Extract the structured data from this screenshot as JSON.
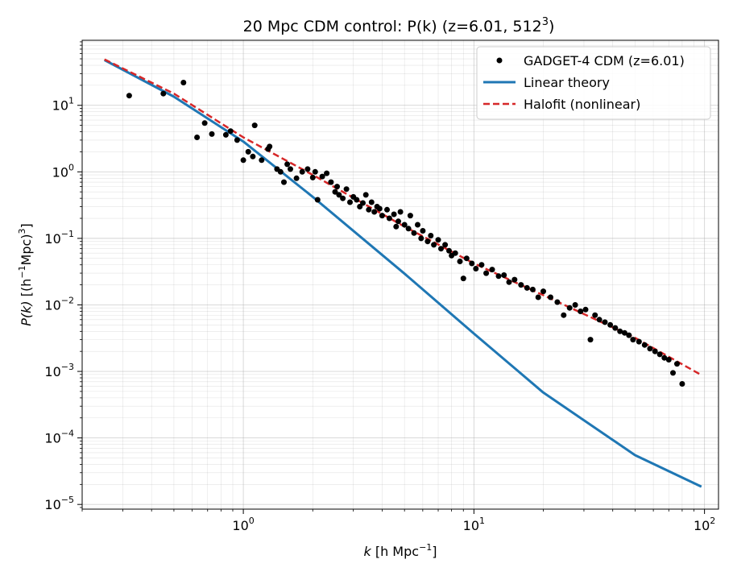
{
  "chart_data": {
    "type": "scatter",
    "title_main": "20 Mpc CDM control: P(k) (z=6.01, 512",
    "title_sup": "3",
    "title_end": ")",
    "xlabel": {
      "base": "k",
      "unit": "[h Mpc",
      "exp": "−1",
      "close": "]"
    },
    "ylabel": {
      "base": "P(k)",
      "unit": "[(h",
      "exp": "−1",
      "mid": "Mpc)",
      "exp2": "3",
      "close": "]"
    },
    "x_scale": "log",
    "y_scale": "log",
    "xlim": [
      0.2,
      115
    ],
    "ylim": [
      8.5e-06,
      95
    ],
    "x_ticks": [
      {
        "value": 1,
        "label_base": "10",
        "label_exp": "0"
      },
      {
        "value": 10,
        "label_base": "10",
        "label_exp": "1"
      },
      {
        "value": 100,
        "label_base": "10",
        "label_exp": "2"
      }
    ],
    "y_ticks": [
      {
        "value": 1e-05,
        "label_base": "10",
        "label_exp": "−5"
      },
      {
        "value": 0.0001,
        "label_base": "10",
        "label_exp": "−4"
      },
      {
        "value": 0.001,
        "label_base": "10",
        "label_exp": "−3"
      },
      {
        "value": 0.01,
        "label_base": "10",
        "label_exp": "−2"
      },
      {
        "value": 0.1,
        "label_base": "10",
        "label_exp": "−1"
      },
      {
        "value": 1,
        "label_base": "10",
        "label_exp": "0"
      },
      {
        "value": 10,
        "label_base": "10",
        "label_exp": "1"
      }
    ],
    "grid": true,
    "legend_position": "top-right",
    "series": [
      {
        "name": "GADGET-4 CDM (z=6.01)",
        "kind": "scatter",
        "color": "#000000",
        "points": [
          [
            0.32,
            14
          ],
          [
            0.45,
            15
          ],
          [
            0.55,
            22
          ],
          [
            0.63,
            3.3
          ],
          [
            0.68,
            5.4
          ],
          [
            0.73,
            3.7
          ],
          [
            0.84,
            3.6
          ],
          [
            0.88,
            4.1
          ],
          [
            0.94,
            3.0
          ],
          [
            1.0,
            1.5
          ],
          [
            1.05,
            2.0
          ],
          [
            1.1,
            1.7
          ],
          [
            1.12,
            5.0
          ],
          [
            1.2,
            1.5
          ],
          [
            1.28,
            2.2
          ],
          [
            1.3,
            2.4
          ],
          [
            1.4,
            1.1
          ],
          [
            1.45,
            1.0
          ],
          [
            1.5,
            0.7
          ],
          [
            1.55,
            1.3
          ],
          [
            1.6,
            1.1
          ],
          [
            1.7,
            0.8
          ],
          [
            1.8,
            1.0
          ],
          [
            1.9,
            1.1
          ],
          [
            2.0,
            0.82
          ],
          [
            2.05,
            1.0
          ],
          [
            2.1,
            0.38
          ],
          [
            2.2,
            0.85
          ],
          [
            2.3,
            0.95
          ],
          [
            2.4,
            0.7
          ],
          [
            2.5,
            0.5
          ],
          [
            2.55,
            0.6
          ],
          [
            2.6,
            0.45
          ],
          [
            2.7,
            0.4
          ],
          [
            2.8,
            0.55
          ],
          [
            2.9,
            0.35
          ],
          [
            3.0,
            0.42
          ],
          [
            3.1,
            0.38
          ],
          [
            3.2,
            0.3
          ],
          [
            3.3,
            0.34
          ],
          [
            3.4,
            0.45
          ],
          [
            3.5,
            0.27
          ],
          [
            3.6,
            0.35
          ],
          [
            3.7,
            0.25
          ],
          [
            3.8,
            0.3
          ],
          [
            3.9,
            0.28
          ],
          [
            4.0,
            0.22
          ],
          [
            4.2,
            0.27
          ],
          [
            4.3,
            0.2
          ],
          [
            4.5,
            0.23
          ],
          [
            4.6,
            0.15
          ],
          [
            4.7,
            0.18
          ],
          [
            4.8,
            0.25
          ],
          [
            5.0,
            0.16
          ],
          [
            5.2,
            0.14
          ],
          [
            5.3,
            0.22
          ],
          [
            5.5,
            0.12
          ],
          [
            5.7,
            0.16
          ],
          [
            5.9,
            0.1
          ],
          [
            6.0,
            0.13
          ],
          [
            6.3,
            0.09
          ],
          [
            6.5,
            0.11
          ],
          [
            6.7,
            0.08
          ],
          [
            7.0,
            0.095
          ],
          [
            7.2,
            0.07
          ],
          [
            7.5,
            0.08
          ],
          [
            7.8,
            0.065
          ],
          [
            8.0,
            0.055
          ],
          [
            8.3,
            0.06
          ],
          [
            8.7,
            0.045
          ],
          [
            9.0,
            0.025
          ],
          [
            9.3,
            0.05
          ],
          [
            9.8,
            0.042
          ],
          [
            10.2,
            0.035
          ],
          [
            10.8,
            0.04
          ],
          [
            11.3,
            0.03
          ],
          [
            12.0,
            0.034
          ],
          [
            12.8,
            0.027
          ],
          [
            13.5,
            0.028
          ],
          [
            14.2,
            0.022
          ],
          [
            15.0,
            0.024
          ],
          [
            16.0,
            0.02
          ],
          [
            17.0,
            0.018
          ],
          [
            18.0,
            0.017
          ],
          [
            19.0,
            0.013
          ],
          [
            20.0,
            0.016
          ],
          [
            21.5,
            0.013
          ],
          [
            23.0,
            0.011
          ],
          [
            24.5,
            0.007
          ],
          [
            26.0,
            0.009
          ],
          [
            27.5,
            0.01
          ],
          [
            29.0,
            0.008
          ],
          [
            30.5,
            0.0085
          ],
          [
            32.0,
            0.003
          ],
          [
            33.5,
            0.007
          ],
          [
            35.0,
            0.006
          ],
          [
            37.0,
            0.0055
          ],
          [
            39.0,
            0.005
          ],
          [
            41.0,
            0.0045
          ],
          [
            43.0,
            0.004
          ],
          [
            45.0,
            0.0038
          ],
          [
            47.0,
            0.0035
          ],
          [
            49.0,
            0.003
          ],
          [
            52.0,
            0.0028
          ],
          [
            55.0,
            0.0025
          ],
          [
            58.0,
            0.0022
          ],
          [
            61.0,
            0.002
          ],
          [
            64.0,
            0.0018
          ],
          [
            67.0,
            0.0016
          ],
          [
            70.0,
            0.0015
          ],
          [
            73.0,
            0.00095
          ],
          [
            76.0,
            0.0013
          ],
          [
            80.0,
            0.00065
          ]
        ]
      },
      {
        "name": "Linear theory",
        "kind": "line",
        "color": "#1f77b4",
        "points": [
          [
            0.25,
            48
          ],
          [
            0.5,
            13.5
          ],
          [
            1.0,
            2.85
          ],
          [
            2.0,
            0.42
          ],
          [
            5.0,
            0.0295
          ],
          [
            10.0,
            0.0037
          ],
          [
            20.0,
            0.00048
          ],
          [
            50.0,
            5.5e-05
          ],
          [
            97.0,
            1.85e-05
          ]
        ]
      },
      {
        "name": "Halofit (nonlinear)",
        "kind": "dashed-line",
        "color": "#d62728",
        "points": [
          [
            0.25,
            49
          ],
          [
            0.5,
            15
          ],
          [
            1.0,
            3.3
          ],
          [
            2.0,
            0.9
          ],
          [
            5.0,
            0.15
          ],
          [
            10.0,
            0.042
          ],
          [
            20.0,
            0.014
          ],
          [
            50.0,
            0.0032
          ],
          [
            97.0,
            0.00088
          ]
        ]
      }
    ]
  }
}
